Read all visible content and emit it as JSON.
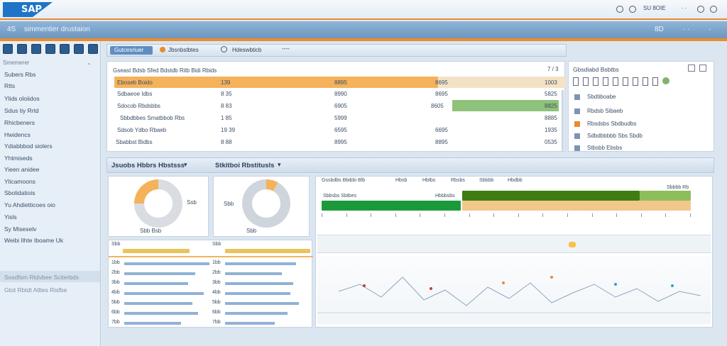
{
  "app": {
    "logo_text": "SAP"
  },
  "top_right": {
    "labels": [
      "8 ·  ·",
      "· ·",
      "·"
    ],
    "items_text": "SU  8OIE"
  },
  "nav": {
    "left_code": "4S",
    "title": "simmentier drustaion",
    "right_labels": [
      "8D",
      "· ·",
      "·"
    ]
  },
  "sidebar": {
    "header": "Smemerer",
    "items": [
      "Subers Rbs",
      "Rtts",
      "Ylids oloiidos",
      "Sdus tiy Rrtd",
      "Rhicbeners",
      "Hwidencs",
      "Ydiabbbod siolers",
      "Yhtmiseds",
      "Yieen anidee",
      "Ylicamoons",
      "Sbolidatiois",
      "Yu Ahdietticoes oio",
      "Yisls",
      "Sy Miseselv",
      "Weibi Ilhte Iboame Uk"
    ],
    "bottom_items": [
      "Sosdfsm Rtdvbee Sciterbds",
      "Gtot Rbtdt Atltes Risfbe"
    ]
  },
  "tabs": {
    "active": "Gutcesriuer",
    "second": "Jbsnbstbtes",
    "third": "Hdeswbticb",
    "more": "----"
  },
  "top_table": {
    "title": "Gseast Bdsb Sfed Bdstdb Ritb Bidi Rbids",
    "pager": "7 / 3",
    "rows": [
      {
        "name": "Eboseb Boido",
        "c1": "139",
        "c2": "8895",
        "c3": "8695",
        "c4": "1003"
      },
      {
        "name": "Sdbaeoe Idbs",
        "c1": "8 35",
        "c2": "8990",
        "c3": "8695",
        "c4": "5825"
      },
      {
        "name": "Sdocob Rbdsbbs",
        "c1": "8 83",
        "c2": "6905",
        "c3": "8605",
        "c4": "8825"
      },
      {
        "name": "Sbbdbbes Smatbbob Rbs",
        "c1": "1 85",
        "c2": "5999",
        "c3": "",
        "c4": "8885"
      },
      {
        "name": "Sdsob Ydbo Rbaeb",
        "c1": "19 39",
        "c2": "6595",
        "c3": "6695",
        "c4": "1935"
      },
      {
        "name": "Sbabbst Bidbs",
        "c1": "8 88",
        "c2": "8995",
        "c3": "8895",
        "c4": "0535"
      }
    ]
  },
  "right_panel": {
    "title": "Gbsdiabd Bsbtbs",
    "items": [
      "Sbdtiboabe",
      "Rbdsb Sibaeb",
      "Rbsdsbs Sbdbudbs",
      "Sdbdbbbbb Sbs Sbdb",
      "Stbsbb Ebsbs"
    ]
  },
  "section2": {
    "title_left": "Jsuobs Hbbrs Hbstsss",
    "title_right": "Stkitboi Rbstitusls"
  },
  "donut_left": {
    "value_pct": 25,
    "label_right": "Ssb",
    "label_bottom": "Sbb Bsb"
  },
  "donut_right": {
    "value_pct": 8,
    "label_left": "Sbb",
    "label_bottom": "Sbb"
  },
  "gantt": {
    "headers": [
      "Gssbdbs Bbibbi Blb",
      "Hbsb",
      "Hbtbs",
      "Rbsbs",
      "Sbbbb",
      "Hbdbb"
    ],
    "row_labels": [
      "Sbbsbs Sbtbes",
      "Hbbbsbs"
    ],
    "right_label": "Sbbbb Rb"
  },
  "lists": {
    "left_head": "Sbb",
    "right_head": "Sbb",
    "left_rows": [
      "1bb",
      "2bb",
      "3bb",
      "4bb",
      "5bb",
      "6bb",
      "7bb"
    ],
    "right_rows": [
      "1bb",
      "2bb",
      "3bb",
      "4bb",
      "5bb",
      "6bb",
      "7bb"
    ]
  },
  "colors": {
    "orange": "#f5b25a",
    "green": "#7fb36c",
    "darkgreen": "#3f7d13",
    "accent": "#e98c2e"
  }
}
